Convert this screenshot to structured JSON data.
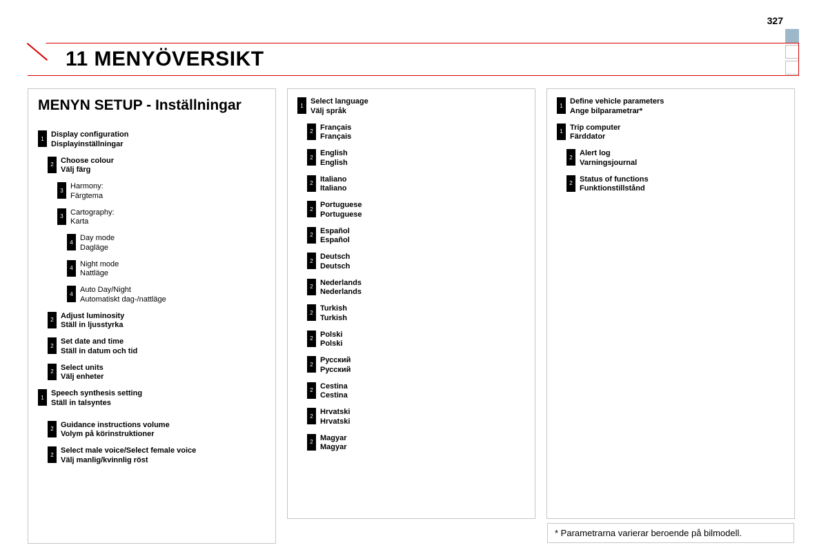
{
  "page_number": "327",
  "header": "11   MENYÖVERSIKT",
  "section_title": "MENYN SETUP - Inställningar",
  "footnote": "* Parametrarna varierar beroende på bilmodell.",
  "col1": [
    {
      "level": "1",
      "indent": 1,
      "bold": true,
      "l1": "Display configuration",
      "l2": "Displayinställningar"
    },
    {
      "level": "2",
      "indent": 2,
      "bold": true,
      "l1": "Choose colour",
      "l2": "Välj färg"
    },
    {
      "level": "3",
      "indent": 3,
      "bold": false,
      "l1": "Harmony:",
      "l2": "Färgtema"
    },
    {
      "level": "3",
      "indent": 3,
      "bold": false,
      "l1": "Cartography:",
      "l2": "Karta"
    },
    {
      "level": "4",
      "indent": 4,
      "bold": false,
      "l1": "Day mode",
      "l2": "Dagläge"
    },
    {
      "level": "4",
      "indent": 4,
      "bold": false,
      "l1": "Night mode",
      "l2": "Nattläge"
    },
    {
      "level": "4",
      "indent": 4,
      "bold": false,
      "l1": "Auto Day/Night",
      "l2": "Automatiskt dag-/nattläge"
    },
    {
      "level": "2",
      "indent": 2,
      "bold": true,
      "l1": "Adjust luminosity",
      "l2": "Ställ in ljusstyrka"
    },
    {
      "level": "2",
      "indent": 2,
      "bold": true,
      "l1": "Set date and time",
      "l2": "Ställ in datum och tid"
    },
    {
      "level": "2",
      "indent": 2,
      "bold": true,
      "l1": "Select units",
      "l2": "Välj enheter"
    },
    {
      "level": "1",
      "indent": 1,
      "bold": true,
      "l1": "Speech synthesis setting",
      "l2": "Ställ in talsyntes"
    },
    {
      "level": "2",
      "indent": 2,
      "bold": true,
      "gap": true,
      "l1": "Guidance instructions volume",
      "l2": "Volym på körinstruktioner"
    },
    {
      "level": "2",
      "indent": 2,
      "bold": true,
      "l1": "Select male voice/Select female voice",
      "l2": "Välj manlig/kvinnlig röst"
    }
  ],
  "col2": [
    {
      "level": "1",
      "indent": 1,
      "bold": true,
      "l1": "Select language",
      "l2": "Välj språk"
    },
    {
      "level": "2",
      "indent": 2,
      "bold": true,
      "l1": "Français",
      "l2": "Français"
    },
    {
      "level": "2",
      "indent": 2,
      "bold": true,
      "l1": "English",
      "l2": "English"
    },
    {
      "level": "2",
      "indent": 2,
      "bold": true,
      "l1": "Italiano",
      "l2": "Italiano"
    },
    {
      "level": "2",
      "indent": 2,
      "bold": true,
      "l1": "Portuguese",
      "l2": "Portuguese"
    },
    {
      "level": "2",
      "indent": 2,
      "bold": true,
      "l1": "Español",
      "l2": "Español"
    },
    {
      "level": "2",
      "indent": 2,
      "bold": true,
      "l1": "Deutsch",
      "l2": "Deutsch"
    },
    {
      "level": "2",
      "indent": 2,
      "bold": true,
      "l1": "Nederlands",
      "l2": "Nederlands"
    },
    {
      "level": "2",
      "indent": 2,
      "bold": true,
      "l1": "Turkish",
      "l2": "Turkish"
    },
    {
      "level": "2",
      "indent": 2,
      "bold": true,
      "l1": "Polski",
      "l2": "Polski"
    },
    {
      "level": "2",
      "indent": 2,
      "bold": true,
      "l1": "Русский",
      "l2": "Русский"
    },
    {
      "level": "2",
      "indent": 2,
      "bold": true,
      "l1": "Cestina",
      "l2": "Cestina"
    },
    {
      "level": "2",
      "indent": 2,
      "bold": true,
      "l1": "Hrvatski",
      "l2": "Hrvatski"
    },
    {
      "level": "2",
      "indent": 2,
      "bold": true,
      "l1": "Magyar",
      "l2": "Magyar"
    }
  ],
  "col3": [
    {
      "level": "1",
      "indent": 1,
      "bold": true,
      "l1": "Define vehicle parameters",
      "l2": "Ange bilparametrar*"
    },
    {
      "level": "1",
      "indent": 1,
      "bold": true,
      "l1": "Trip computer",
      "l2": "Färddator"
    },
    {
      "level": "2",
      "indent": 2,
      "bold": true,
      "l1": "Alert log",
      "l2": "Varningsjournal"
    },
    {
      "level": "2",
      "indent": 2,
      "bold": true,
      "l1": "Status of functions",
      "l2": "Funktionstillstånd"
    }
  ]
}
